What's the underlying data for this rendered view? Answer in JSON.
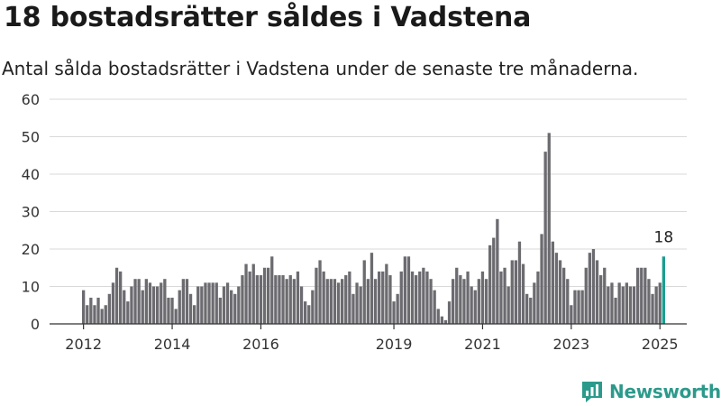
{
  "header": {
    "title": "18 bostadsrätter såldes i Vadstena",
    "subtitle": "Antal sålda bostadsrätter i Vadstena under de senaste tre månaderna."
  },
  "brand": {
    "name": "Newsworthy",
    "icon": "newsworthy-logo-icon",
    "color": "#2c9a8b"
  },
  "chart_data": {
    "type": "bar",
    "title": "",
    "xlabel": "",
    "ylabel": "",
    "ylim": [
      0,
      60
    ],
    "yticks": [
      0,
      10,
      20,
      30,
      40,
      50,
      60
    ],
    "x_tick_labels": [
      "2012",
      "2014",
      "2016",
      "2019",
      "2021",
      "2023",
      "2025"
    ],
    "grid": true,
    "bar_color": "#6b6b70",
    "highlight_color": "#1a9e8f",
    "highlight_label": "18",
    "values": [
      9,
      5,
      7,
      5,
      7,
      4,
      5,
      8,
      11,
      15,
      14,
      9,
      6,
      10,
      12,
      12,
      9,
      12,
      11,
      10,
      10,
      11,
      12,
      7,
      7,
      4,
      9,
      12,
      12,
      8,
      5,
      10,
      10,
      11,
      11,
      11,
      11,
      7,
      10,
      11,
      9,
      8,
      10,
      13,
      16,
      14,
      16,
      13,
      13,
      15,
      15,
      18,
      13,
      13,
      13,
      12,
      13,
      12,
      14,
      10,
      6,
      5,
      9,
      15,
      17,
      14,
      12,
      12,
      12,
      11,
      12,
      13,
      14,
      8,
      11,
      10,
      17,
      12,
      19,
      12,
      14,
      14,
      16,
      13,
      6,
      8,
      14,
      18,
      18,
      14,
      13,
      14,
      15,
      14,
      12,
      9,
      4,
      2,
      1,
      6,
      12,
      15,
      13,
      12,
      14,
      10,
      9,
      12,
      14,
      12,
      21,
      23,
      28,
      14,
      15,
      10,
      17,
      17,
      22,
      16,
      8,
      7,
      11,
      14,
      24,
      46,
      51,
      22,
      19,
      17,
      15,
      12,
      5,
      9,
      9,
      9,
      15,
      19,
      20,
      17,
      13,
      15,
      10,
      11,
      7,
      11,
      10,
      11,
      10,
      10,
      15,
      15,
      15,
      12,
      8,
      10,
      11,
      18
    ]
  }
}
